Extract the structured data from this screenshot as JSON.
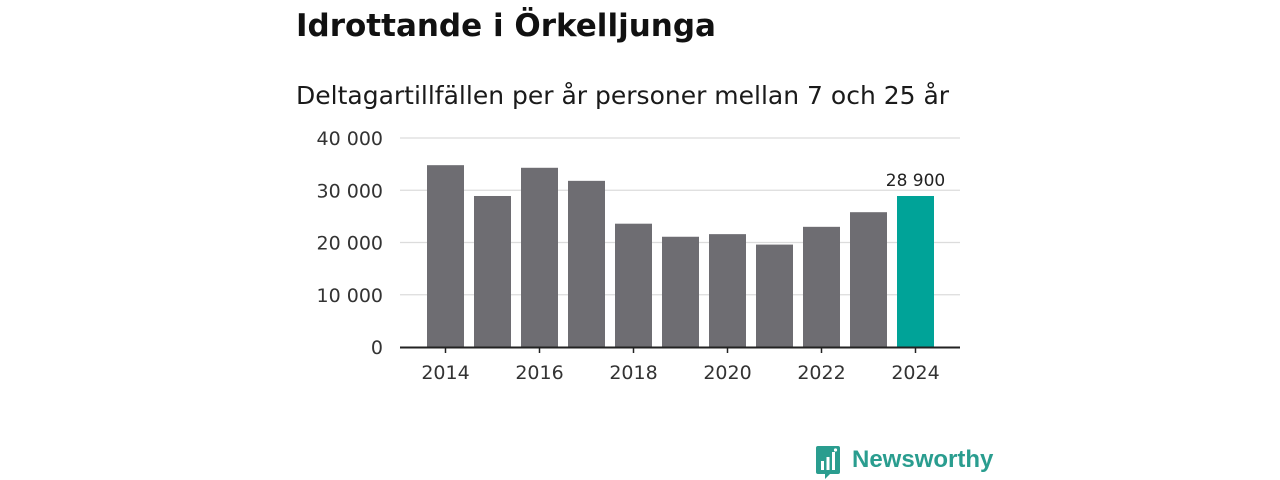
{
  "header": {
    "title": "Idrottande i Örkelljunga",
    "subtitle": "Deltagartillfällen per år personer mellan 7 och 25 år"
  },
  "chart_data": {
    "type": "bar",
    "categories": [
      "2014",
      "2015",
      "2016",
      "2017",
      "2018",
      "2019",
      "2020",
      "2021",
      "2022",
      "2023",
      "2024"
    ],
    "values": [
      34800,
      28900,
      34300,
      31800,
      23600,
      21100,
      21600,
      19600,
      23000,
      25800,
      28900
    ],
    "highlight_index": 10,
    "highlight_label": "28 900",
    "x_tick_labels": [
      "2014",
      "2016",
      "2018",
      "2020",
      "2022",
      "2024"
    ],
    "y_ticks": [
      0,
      10000,
      20000,
      30000,
      40000
    ],
    "y_tick_labels": [
      "0",
      "10 000",
      "20 000",
      "30 000",
      "40 000"
    ],
    "ylim": [
      0,
      40000
    ],
    "grid": true,
    "title": "Idrottande i Örkelljunga",
    "xlabel": "",
    "ylabel": ""
  },
  "colors": {
    "bar": "#6e6d72",
    "highlight": "#00a398",
    "grid": "#dcdcdc",
    "axis": "#222222",
    "brand": "#2a9d8f"
  },
  "branding": {
    "name": "Newsworthy",
    "icon": "newsworthy-logo-icon"
  }
}
